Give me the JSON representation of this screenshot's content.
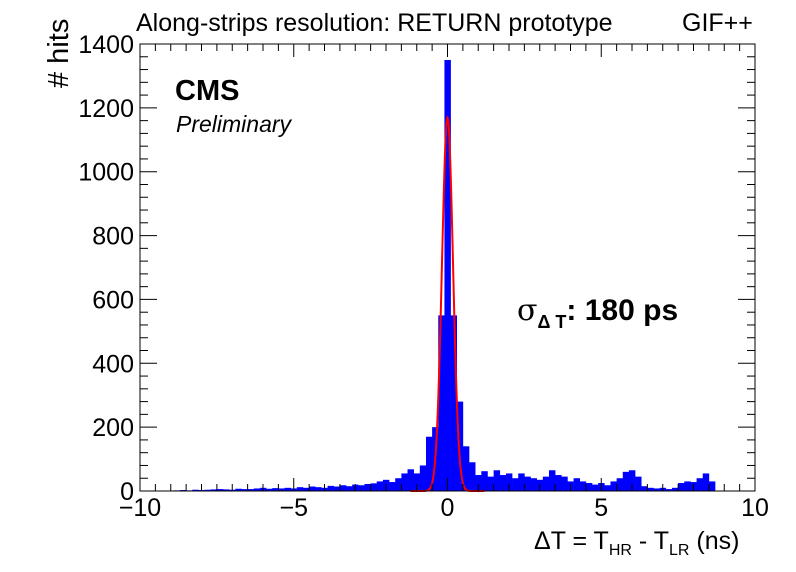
{
  "title": "Along-strips resolution: RETURN prototype",
  "tag": "GIF++",
  "experiment": "CMS",
  "status": "Preliminary",
  "annotation": {
    "symbol": "σ",
    "subscript": "Δ T",
    "text": ": 180 ps"
  },
  "xlabel": {
    "part1": "ΔT = T",
    "sub1": "HR",
    "part2": " - T",
    "sub2": "LR",
    "part3": " (ns)"
  },
  "ylabel": "# hits",
  "colors": {
    "histogram": "#0000ff",
    "fit": "#ff0000",
    "axes": "#000000"
  },
  "chart_data": {
    "type": "bar",
    "xlim": [
      -10,
      10
    ],
    "ylim": [
      0,
      1400
    ],
    "bin_width": 0.2,
    "x_ticks": [
      -10,
      -5,
      0,
      5,
      10
    ],
    "x_tick_labels": [
      "−10",
      "−5",
      "0",
      "5",
      "10"
    ],
    "y_ticks": [
      0,
      200,
      400,
      600,
      800,
      1000,
      1200,
      1400
    ],
    "y_tick_labels": [
      "0",
      "200",
      "400",
      "600",
      "800",
      "1000",
      "1200",
      "1400"
    ],
    "histogram": [
      [
        -8.8,
        2
      ],
      [
        -8.6,
        3
      ],
      [
        -8.4,
        2
      ],
      [
        -8.2,
        4
      ],
      [
        -8.0,
        3
      ],
      [
        -7.8,
        4
      ],
      [
        -7.6,
        5
      ],
      [
        -7.4,
        6
      ],
      [
        -7.2,
        5
      ],
      [
        -7.0,
        4
      ],
      [
        -6.8,
        7
      ],
      [
        -6.6,
        6
      ],
      [
        -6.4,
        6
      ],
      [
        -6.2,
        8
      ],
      [
        -6.0,
        10
      ],
      [
        -5.8,
        7
      ],
      [
        -5.6,
        9
      ],
      [
        -5.4,
        8
      ],
      [
        -5.2,
        10
      ],
      [
        -5.0,
        8
      ],
      [
        -4.8,
        12
      ],
      [
        -4.6,
        10
      ],
      [
        -4.4,
        14
      ],
      [
        -4.2,
        12
      ],
      [
        -4.0,
        10
      ],
      [
        -3.8,
        16
      ],
      [
        -3.6,
        14
      ],
      [
        -3.4,
        18
      ],
      [
        -3.2,
        15
      ],
      [
        -3.0,
        20
      ],
      [
        -2.8,
        18
      ],
      [
        -2.6,
        22
      ],
      [
        -2.4,
        24
      ],
      [
        -2.2,
        30
      ],
      [
        -2.0,
        35
      ],
      [
        -1.8,
        28
      ],
      [
        -1.6,
        40
      ],
      [
        -1.4,
        55
      ],
      [
        -1.2,
        68
      ],
      [
        -1.0,
        55
      ],
      [
        -0.8,
        80
      ],
      [
        -0.6,
        170
      ],
      [
        -0.4,
        200
      ],
      [
        -0.2,
        550
      ],
      [
        0.0,
        1350
      ],
      [
        0.2,
        550
      ],
      [
        0.4,
        280
      ],
      [
        0.6,
        140
      ],
      [
        0.8,
        90
      ],
      [
        1.0,
        50
      ],
      [
        1.2,
        62
      ],
      [
        1.4,
        45
      ],
      [
        1.6,
        65
      ],
      [
        1.8,
        50
      ],
      [
        2.0,
        55
      ],
      [
        2.2,
        40
      ],
      [
        2.4,
        55
      ],
      [
        2.6,
        45
      ],
      [
        2.8,
        40
      ],
      [
        3.0,
        35
      ],
      [
        3.2,
        45
      ],
      [
        3.4,
        65
      ],
      [
        3.6,
        50
      ],
      [
        3.8,
        45
      ],
      [
        4.0,
        30
      ],
      [
        4.2,
        40
      ],
      [
        4.4,
        30
      ],
      [
        4.6,
        25
      ],
      [
        4.8,
        20
      ],
      [
        5.0,
        25
      ],
      [
        5.2,
        18
      ],
      [
        5.4,
        30
      ],
      [
        5.6,
        40
      ],
      [
        5.8,
        60
      ],
      [
        6.0,
        65
      ],
      [
        6.2,
        45
      ],
      [
        6.4,
        15
      ],
      [
        6.6,
        10
      ],
      [
        6.8,
        8
      ],
      [
        7.0,
        10
      ],
      [
        7.2,
        6
      ],
      [
        7.4,
        10
      ],
      [
        7.6,
        25
      ],
      [
        7.8,
        30
      ],
      [
        8.0,
        28
      ],
      [
        8.2,
        40
      ],
      [
        8.4,
        55
      ],
      [
        8.6,
        30
      ]
    ],
    "fit": {
      "function": "gaussian",
      "amplitude": 1170,
      "mean": 0.0,
      "sigma": 0.18
    }
  }
}
